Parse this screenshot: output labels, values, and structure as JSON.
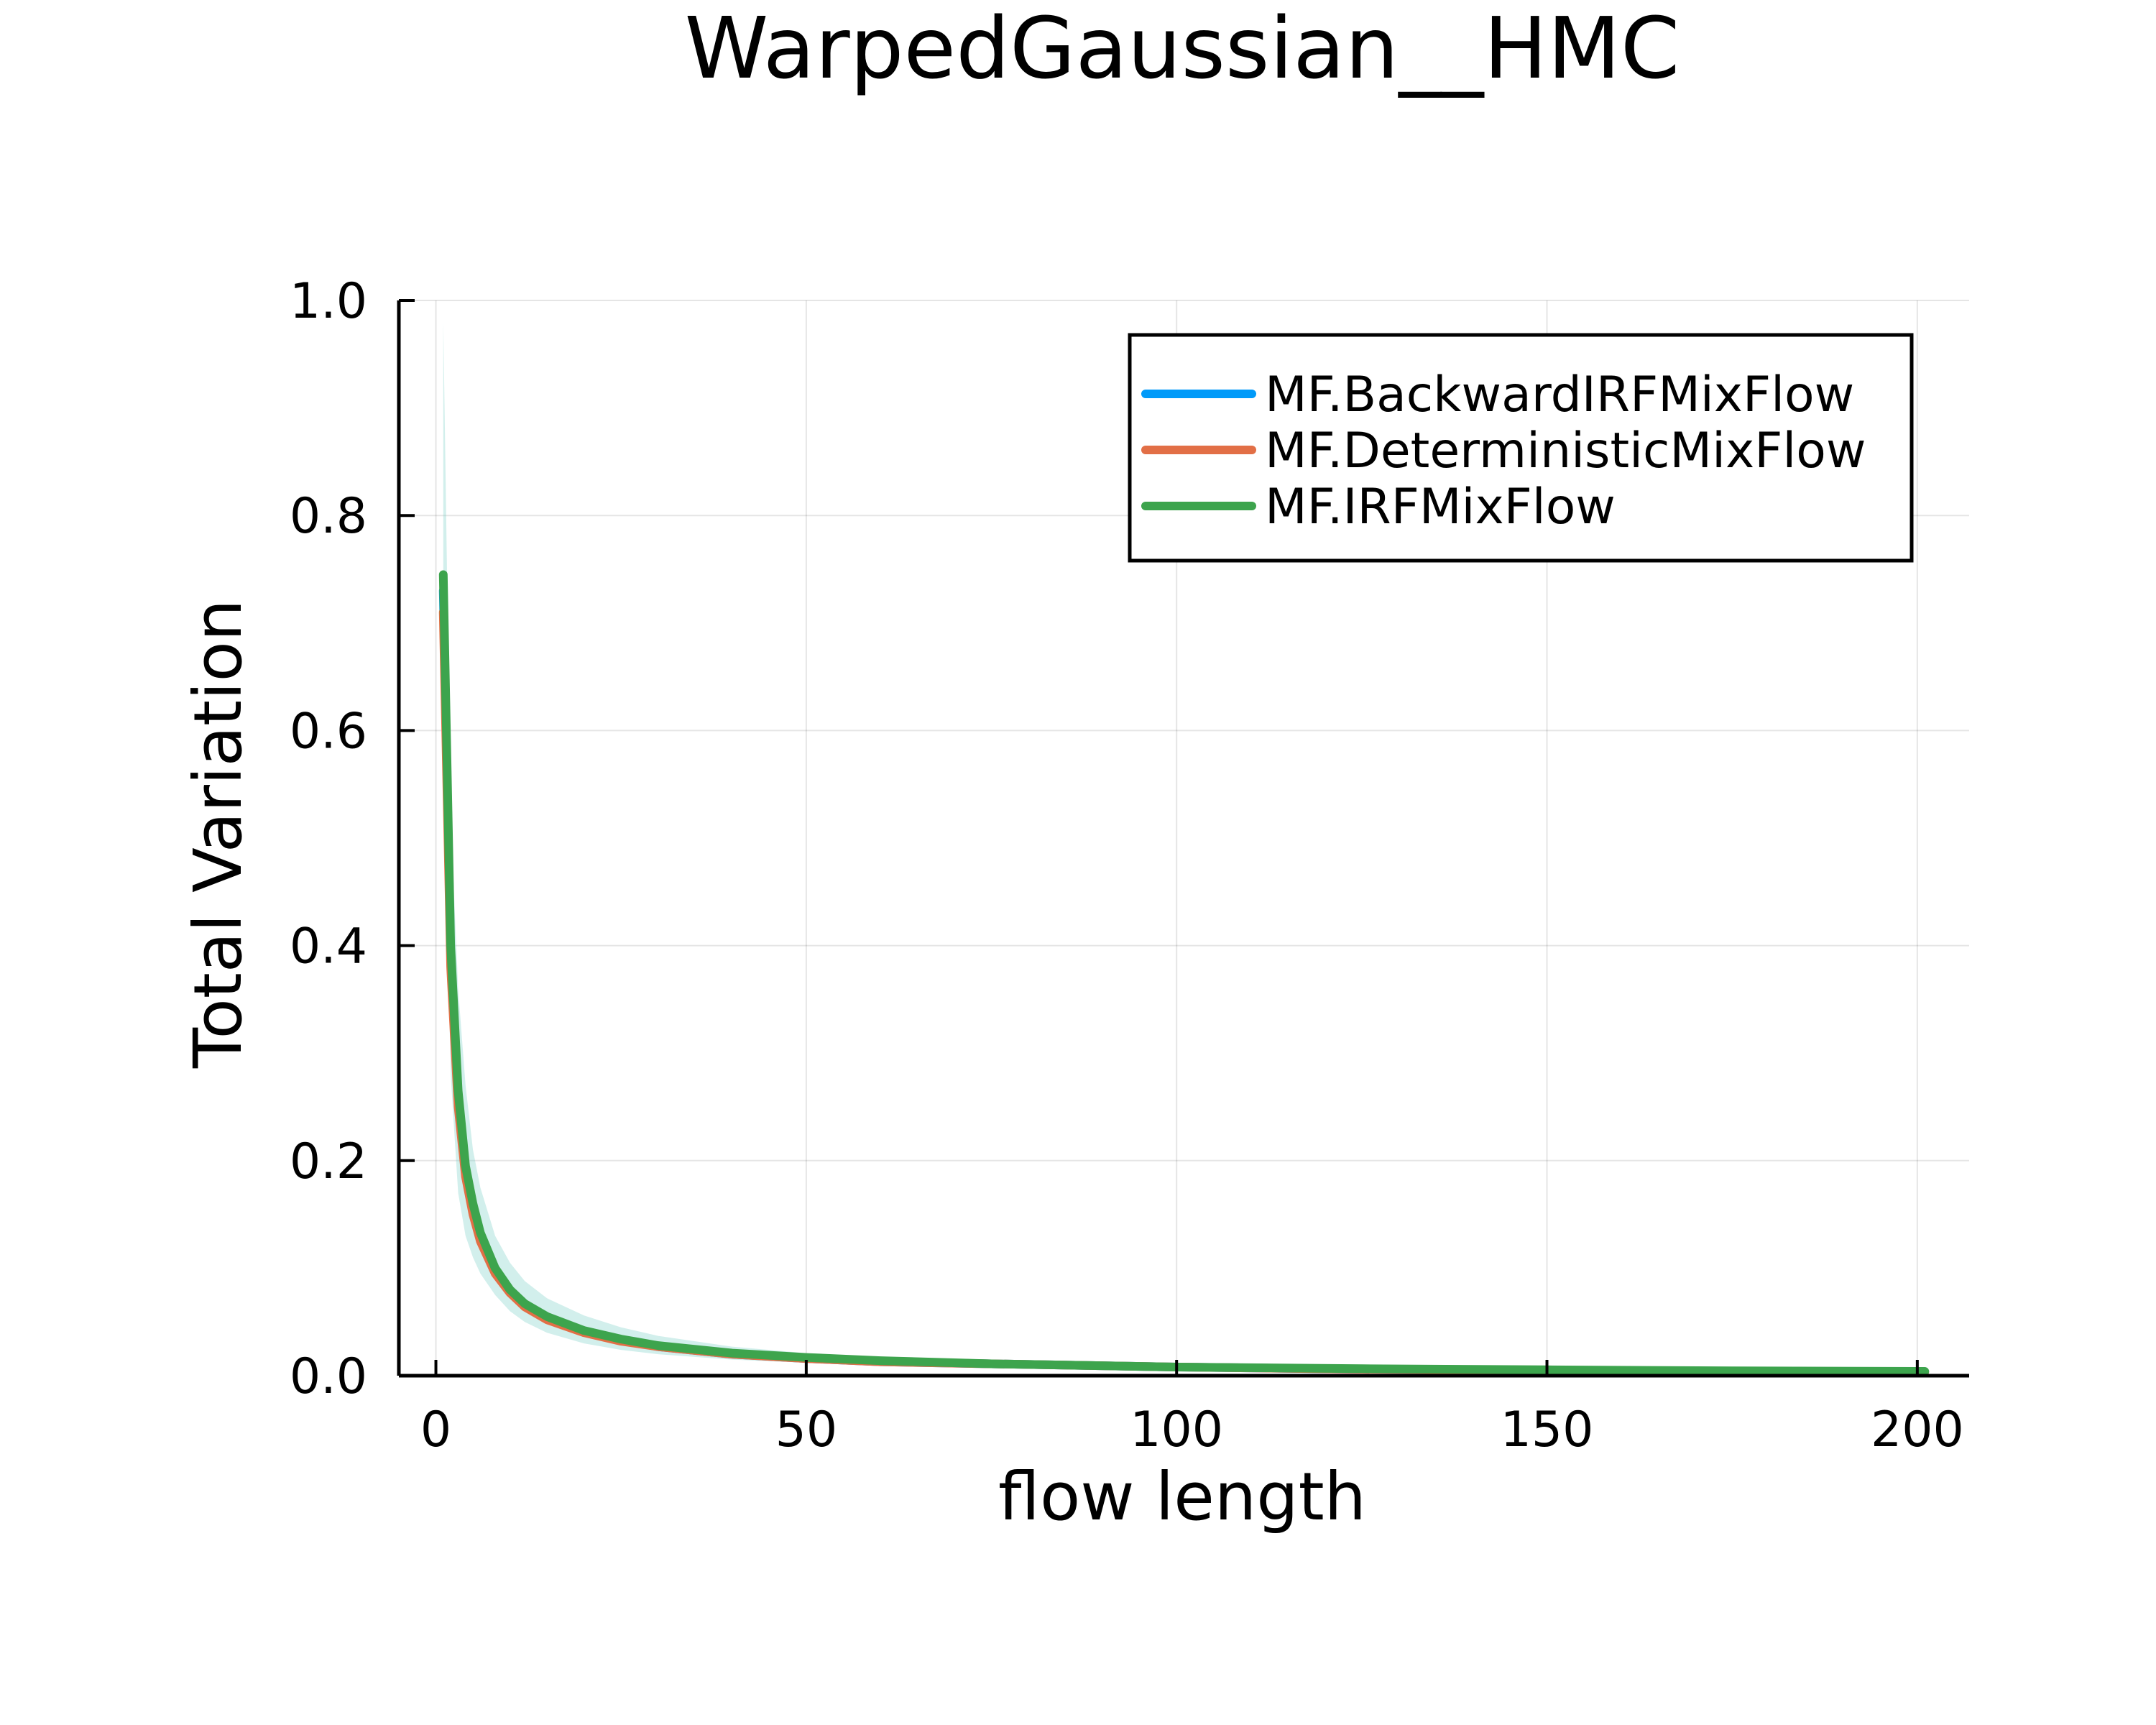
{
  "chart_data": {
    "type": "line",
    "title": "WarpedGaussian__HMC",
    "xlabel": "flow length",
    "ylabel": "Total Variation",
    "xlim": [
      -5,
      207
    ],
    "ylim": [
      0,
      1
    ],
    "xticks": [
      0,
      50,
      100,
      150,
      200
    ],
    "xtick_labels": [
      "0",
      "50",
      "100",
      "150",
      "200"
    ],
    "yticks": [
      0,
      0.2,
      0.4,
      0.6,
      0.8,
      1.0
    ],
    "ytick_labels": [
      "0.0",
      "0.2",
      "0.4",
      "0.6",
      "0.8",
      "1.0"
    ],
    "grid": true,
    "legend_position": "top-right",
    "x": [
      1,
      2,
      3,
      4,
      5,
      6,
      8,
      10,
      12,
      15,
      20,
      25,
      30,
      40,
      50,
      60,
      75,
      100,
      125,
      150,
      175,
      200,
      201
    ],
    "series": [
      {
        "name": "MF.BackwardIRFMixFlow",
        "color": "#009af9",
        "values": [
          0.73,
          0.39,
          0.26,
          0.19,
          0.155,
          0.13,
          0.098,
          0.079,
          0.066,
          0.054,
          0.041,
          0.033,
          0.027,
          0.02,
          0.016,
          0.013,
          0.011,
          0.008,
          0.006,
          0.005,
          0.004,
          0.0035,
          0.0035
        ]
      },
      {
        "name": "MF.DeterministicMixFlow",
        "color": "#e26f46",
        "values": [
          0.71,
          0.38,
          0.25,
          0.185,
          0.15,
          0.125,
          0.095,
          0.077,
          0.064,
          0.052,
          0.04,
          0.032,
          0.027,
          0.02,
          0.016,
          0.013,
          0.011,
          0.008,
          0.006,
          0.005,
          0.004,
          0.0035,
          0.0035
        ]
      },
      {
        "name": "MF.IRFMixFlow",
        "color": "#3da44d",
        "values": [
          0.745,
          0.4,
          0.265,
          0.195,
          0.16,
          0.133,
          0.1,
          0.08,
          0.067,
          0.055,
          0.042,
          0.034,
          0.028,
          0.021,
          0.017,
          0.014,
          0.011,
          0.008,
          0.0065,
          0.0055,
          0.0045,
          0.004,
          0.004
        ]
      }
    ],
    "band": {
      "color": "#7fd1c9",
      "x": [
        1,
        2,
        3,
        4,
        5,
        6,
        8,
        10,
        12,
        15,
        20,
        25,
        30,
        40,
        50,
        60,
        75,
        100,
        125,
        150,
        175,
        200,
        201
      ],
      "lower": [
        0.6,
        0.28,
        0.17,
        0.13,
        0.11,
        0.095,
        0.075,
        0.06,
        0.05,
        0.04,
        0.03,
        0.024,
        0.02,
        0.015,
        0.012,
        0.01,
        0.008,
        0.006,
        0.005,
        0.004,
        0.003,
        0.003,
        0.003
      ],
      "upper": [
        0.98,
        0.52,
        0.36,
        0.27,
        0.21,
        0.175,
        0.13,
        0.105,
        0.088,
        0.072,
        0.056,
        0.045,
        0.037,
        0.027,
        0.021,
        0.017,
        0.013,
        0.01,
        0.008,
        0.0065,
        0.0055,
        0.005,
        0.005
      ]
    }
  }
}
